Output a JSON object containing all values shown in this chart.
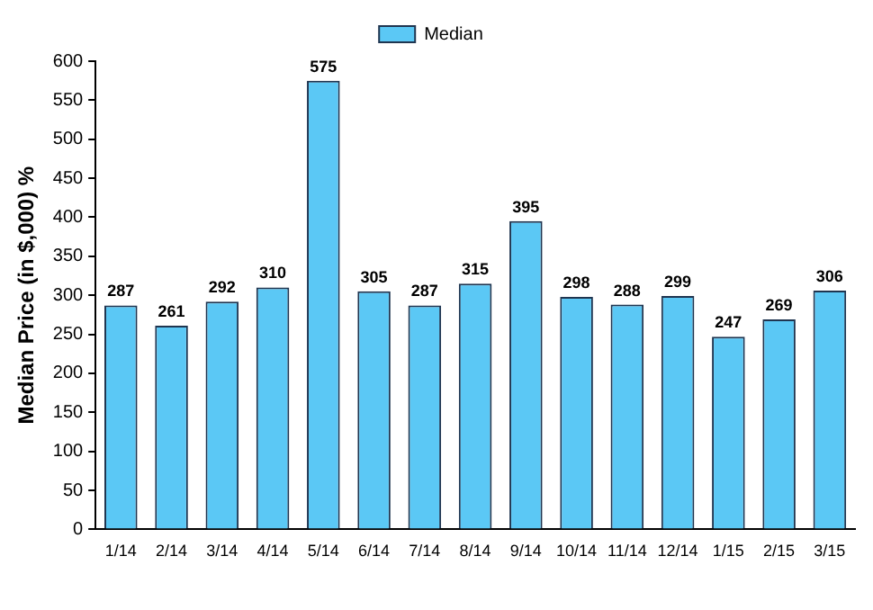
{
  "chart_data": {
    "type": "bar",
    "ylabel": "Median Price (in $,000) %",
    "categories": [
      "1/14",
      "2/14",
      "3/14",
      "4/14",
      "5/14",
      "6/14",
      "7/14",
      "8/14",
      "9/14",
      "10/14",
      "11/14",
      "12/14",
      "1/15",
      "2/15",
      "3/15"
    ],
    "series": [
      {
        "name": "Median",
        "color": "#5bc8f5",
        "values": [
          287,
          261,
          292,
          310,
          575,
          305,
          287,
          315,
          395,
          298,
          288,
          299,
          247,
          269,
          306
        ]
      }
    ],
    "ylim": [
      0,
      600
    ],
    "yticks": [
      0,
      50,
      100,
      150,
      200,
      250,
      300,
      350,
      400,
      450,
      500,
      550,
      600
    ],
    "grid": false,
    "legend": "top",
    "data_labels": true
  }
}
